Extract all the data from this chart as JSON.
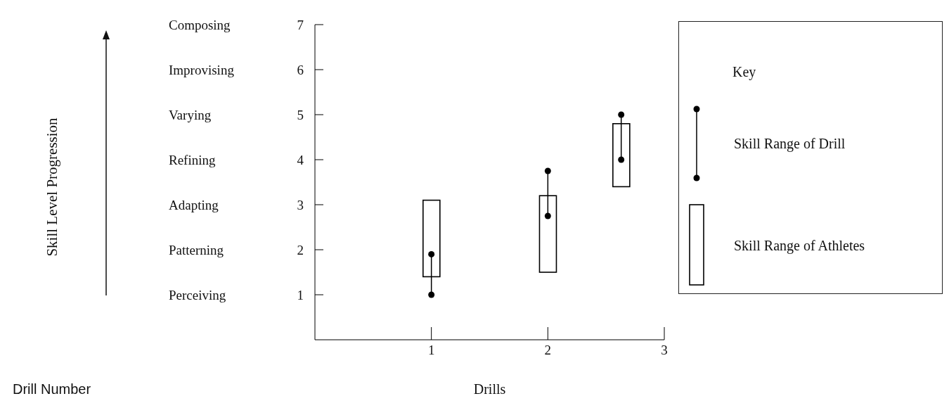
{
  "chart_data": {
    "type": "bar",
    "xlabel": "Drills",
    "legend_title": "Key",
    "legend": "right",
    "x": [
      1,
      2,
      2.63
    ],
    "xlim": [
      0,
      3
    ],
    "xticks": [
      1,
      2,
      3
    ],
    "ylim": [
      0,
      7
    ],
    "yticks": [
      1,
      2,
      3,
      4,
      5,
      6,
      7
    ],
    "series": [
      {
        "name": "Skill Range of Drill",
        "type": "line",
        "color": "#000000",
        "marker": "circle",
        "x": [
          1,
          1,
          1.5,
          2,
          2,
          2.3,
          2.63,
          2.63
        ],
        "values": [
          1.0,
          1.9,
          null,
          2.75,
          3.75,
          null,
          4.0,
          5.0
        ]
      },
      {
        "name": "Skill Range of Athletes",
        "color": "#000000",
        "base": [
          1.4,
          1.5,
          3.4
        ],
        "values": [
          1.7,
          1.7,
          1.4
        ]
      }
    ],
    "annotations": [
      "Perceiving",
      "Patterning",
      "Adapting",
      "Refining",
      "Varying",
      "Improvising",
      "Composing",
      "Skill Level Progression",
      "Drill Number"
    ]
  }
}
